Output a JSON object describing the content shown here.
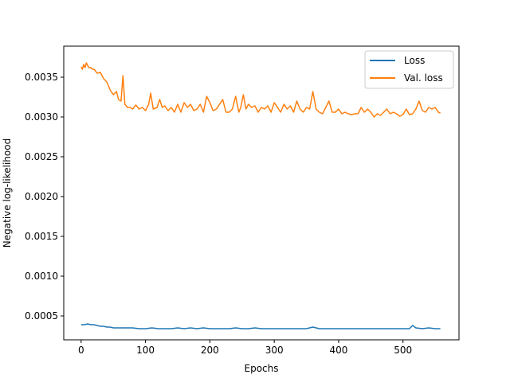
{
  "chart_data": {
    "type": "line",
    "title": "",
    "xlabel": "Epochs",
    "ylabel": "Negative log-likelihood",
    "xlim": [
      -27,
      587
    ],
    "ylim": [
      0.0002,
      0.00389
    ],
    "xticks": [
      0,
      100,
      200,
      300,
      400,
      500
    ],
    "yticks": [
      0.0005,
      0.001,
      0.0015,
      0.002,
      0.0025,
      0.003,
      0.0035
    ],
    "ytick_labels": [
      "0.0005",
      "0.0010",
      "0.0015",
      "0.0020",
      "0.0025",
      "0.0030",
      "0.0035"
    ],
    "grid": false,
    "legend_position": "top-right",
    "series": [
      {
        "name": "Loss",
        "color": "#1f77b4",
        "x": [
          0,
          5,
          10,
          15,
          20,
          25,
          30,
          35,
          40,
          45,
          50,
          60,
          70,
          80,
          90,
          100,
          110,
          120,
          130,
          140,
          150,
          160,
          170,
          180,
          190,
          200,
          210,
          220,
          230,
          240,
          250,
          260,
          270,
          280,
          290,
          300,
          310,
          320,
          330,
          340,
          350,
          360,
          370,
          380,
          390,
          400,
          410,
          420,
          430,
          440,
          450,
          460,
          470,
          480,
          490,
          500,
          510,
          515,
          520,
          530,
          540,
          550,
          558
        ],
        "y": [
          0.00039,
          0.00039,
          0.0004,
          0.00039,
          0.00039,
          0.00038,
          0.00037,
          0.00037,
          0.00036,
          0.00036,
          0.00035,
          0.00035,
          0.00035,
          0.00035,
          0.00034,
          0.00034,
          0.00035,
          0.00034,
          0.00034,
          0.00034,
          0.00035,
          0.00034,
          0.00035,
          0.00034,
          0.00035,
          0.00034,
          0.00034,
          0.00034,
          0.00034,
          0.00035,
          0.00034,
          0.00034,
          0.00035,
          0.00034,
          0.00034,
          0.00034,
          0.00034,
          0.00034,
          0.00034,
          0.00034,
          0.00034,
          0.00036,
          0.00034,
          0.00034,
          0.00034,
          0.00034,
          0.00034,
          0.00034,
          0.00034,
          0.00034,
          0.00034,
          0.00034,
          0.00034,
          0.00034,
          0.00034,
          0.00034,
          0.00034,
          0.00038,
          0.00035,
          0.00034,
          0.00035,
          0.00034,
          0.00034
        ]
      },
      {
        "name": "Val. loss",
        "color": "#ff7f0e",
        "x": [
          0,
          2,
          4,
          6,
          8,
          10,
          12,
          15,
          18,
          20,
          25,
          30,
          35,
          40,
          45,
          50,
          55,
          58,
          62,
          65,
          68,
          72,
          76,
          80,
          85,
          90,
          95,
          100,
          105,
          108,
          112,
          118,
          122,
          126,
          130,
          135,
          140,
          145,
          150,
          155,
          160,
          165,
          170,
          175,
          180,
          185,
          190,
          195,
          200,
          205,
          210,
          215,
          220,
          225,
          230,
          235,
          240,
          245,
          248,
          252,
          256,
          260,
          265,
          270,
          275,
          280,
          285,
          290,
          295,
          300,
          305,
          310,
          315,
          320,
          325,
          330,
          335,
          340,
          345,
          350,
          355,
          360,
          365,
          370,
          375,
          380,
          385,
          390,
          395,
          400,
          405,
          410,
          415,
          420,
          425,
          430,
          435,
          440,
          445,
          450,
          455,
          460,
          465,
          470,
          475,
          480,
          485,
          490,
          495,
          500,
          505,
          510,
          515,
          520,
          525,
          530,
          535,
          540,
          545,
          550,
          555,
          558
        ],
        "y": [
          0.00363,
          0.0036,
          0.00366,
          0.00362,
          0.00368,
          0.00365,
          0.00362,
          0.00362,
          0.0036,
          0.0036,
          0.00355,
          0.00356,
          0.00348,
          0.00344,
          0.00334,
          0.00328,
          0.00332,
          0.00322,
          0.0032,
          0.00352,
          0.00316,
          0.00312,
          0.00312,
          0.0031,
          0.00315,
          0.0031,
          0.00312,
          0.00308,
          0.00316,
          0.0033,
          0.0031,
          0.00312,
          0.00322,
          0.00312,
          0.00314,
          0.00308,
          0.00312,
          0.00306,
          0.00316,
          0.00306,
          0.00318,
          0.00312,
          0.00316,
          0.00308,
          0.0031,
          0.00316,
          0.00306,
          0.00326,
          0.00318,
          0.00308,
          0.0031,
          0.00316,
          0.00322,
          0.00306,
          0.00306,
          0.0031,
          0.00326,
          0.00306,
          0.00312,
          0.00328,
          0.0031,
          0.00316,
          0.00312,
          0.00314,
          0.00306,
          0.00312,
          0.0031,
          0.00314,
          0.00306,
          0.00318,
          0.00312,
          0.00306,
          0.00316,
          0.0031,
          0.00314,
          0.00306,
          0.0032,
          0.0031,
          0.00306,
          0.00312,
          0.0031,
          0.00332,
          0.0031,
          0.00306,
          0.00304,
          0.00312,
          0.0032,
          0.00306,
          0.00306,
          0.0031,
          0.00304,
          0.00306,
          0.00304,
          0.00303,
          0.00304,
          0.00304,
          0.00312,
          0.00306,
          0.0031,
          0.00306,
          0.003,
          0.00304,
          0.00302,
          0.00306,
          0.0031,
          0.00304,
          0.00306,
          0.00304,
          0.00301,
          0.00303,
          0.0031,
          0.00303,
          0.00304,
          0.0031,
          0.0032,
          0.00308,
          0.00306,
          0.00312,
          0.0031,
          0.00312,
          0.00306,
          0.00305
        ]
      }
    ]
  }
}
